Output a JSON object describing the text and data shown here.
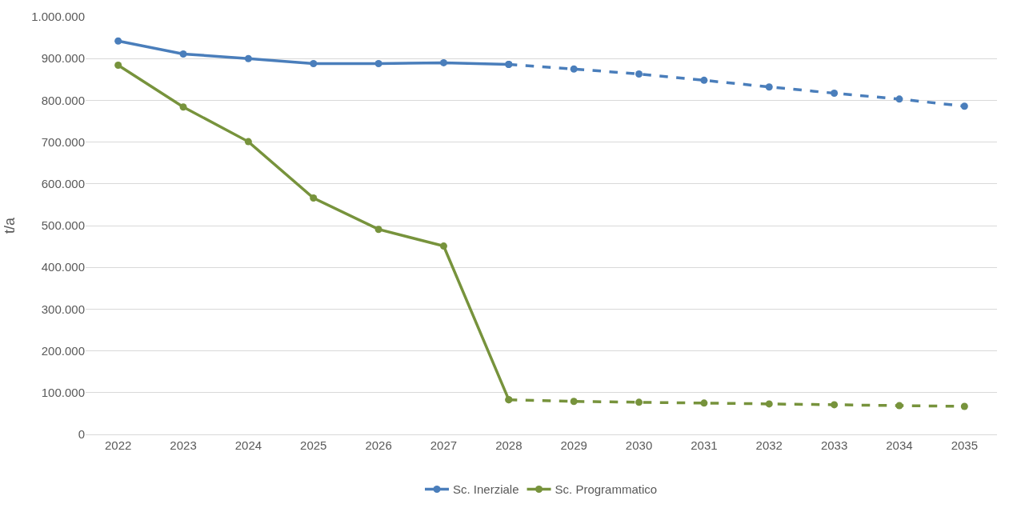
{
  "chart_data": {
    "type": "line",
    "ylabel": "t/a",
    "categories": [
      "2022",
      "2023",
      "2024",
      "2025",
      "2026",
      "2027",
      "2028",
      "2029",
      "2030",
      "2031",
      "2032",
      "2033",
      "2034",
      "2035"
    ],
    "series": [
      {
        "name": "Sc. Inerziale",
        "color": "#4a7ebb",
        "line_style": "solid",
        "values": [
          942000,
          911000,
          900000,
          888000,
          888000,
          890000,
          886000,
          null,
          null,
          null,
          null,
          null,
          null,
          null
        ]
      },
      {
        "color": "#4a7ebb",
        "line_style": "dashed",
        "values": [
          null,
          null,
          null,
          null,
          null,
          null,
          886000,
          875000,
          863000,
          848000,
          832000,
          817000,
          803000,
          786000
        ]
      },
      {
        "name": "Sc. Programmatico",
        "color": "#77933c",
        "line_style": "solid",
        "values": [
          884000,
          784000,
          701000,
          566000,
          491000,
          451000,
          83000,
          null,
          null,
          null,
          null,
          null,
          null,
          null
        ]
      },
      {
        "color": "#77933c",
        "line_style": "dashed",
        "values": [
          null,
          null,
          null,
          null,
          null,
          null,
          83000,
          79000,
          77000,
          75000,
          73000,
          71000,
          69000,
          67000
        ]
      }
    ],
    "ylim": [
      0,
      1000000
    ],
    "yticks": [
      {
        "value": 0,
        "label": "0"
      },
      {
        "value": 100000,
        "label": "100.000"
      },
      {
        "value": 200000,
        "label": "200.000"
      },
      {
        "value": 300000,
        "label": "300.000"
      },
      {
        "value": 400000,
        "label": "400.000"
      },
      {
        "value": 500000,
        "label": "500.000"
      },
      {
        "value": 600000,
        "label": "600.000"
      },
      {
        "value": 700000,
        "label": "700.000"
      },
      {
        "value": 800000,
        "label": "800.000"
      },
      {
        "value": 900000,
        "label": "900.000"
      },
      {
        "value": 1000000,
        "label": "1.000.000"
      }
    ],
    "grid": "y",
    "legend": "bottom",
    "marker": "circle"
  }
}
